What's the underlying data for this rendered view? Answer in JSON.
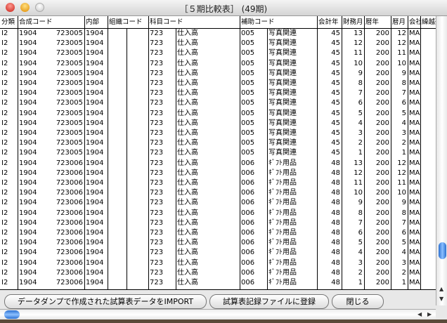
{
  "window": {
    "title": "［５期比較表］ (49期)"
  },
  "headers": [
    "分類",
    "合成コード",
    "内部",
    "組織コード",
    "科目コード",
    "補助コード",
    "会計年",
    "財務月",
    "暦年",
    "暦月",
    "会社",
    "繰越残"
  ],
  "rows": [
    [
      "I2",
      "1904",
      "723005",
      "1904",
      "",
      "",
      "723",
      "仕入高",
      "005",
      "写真関連",
      "45",
      "13",
      "200",
      "12",
      "MA"
    ],
    [
      "I2",
      "1904",
      "723005",
      "1904",
      "",
      "",
      "723",
      "仕入高",
      "005",
      "写真関連",
      "45",
      "12",
      "200",
      "12",
      "MA"
    ],
    [
      "I2",
      "1904",
      "723005",
      "1904",
      "",
      "",
      "723",
      "仕入高",
      "005",
      "写真関連",
      "45",
      "11",
      "200",
      "11",
      "MA"
    ],
    [
      "I2",
      "1904",
      "723005",
      "1904",
      "",
      "",
      "723",
      "仕入高",
      "005",
      "写真関連",
      "45",
      "10",
      "200",
      "10",
      "MA"
    ],
    [
      "I2",
      "1904",
      "723005",
      "1904",
      "",
      "",
      "723",
      "仕入高",
      "005",
      "写真関連",
      "45",
      "9",
      "200",
      "9",
      "MA"
    ],
    [
      "I2",
      "1904",
      "723005",
      "1904",
      "",
      "",
      "723",
      "仕入高",
      "005",
      "写真関連",
      "45",
      "8",
      "200",
      "8",
      "MA"
    ],
    [
      "I2",
      "1904",
      "723005",
      "1904",
      "",
      "",
      "723",
      "仕入高",
      "005",
      "写真関連",
      "45",
      "7",
      "200",
      "7",
      "MA"
    ],
    [
      "I2",
      "1904",
      "723005",
      "1904",
      "",
      "",
      "723",
      "仕入高",
      "005",
      "写真関連",
      "45",
      "6",
      "200",
      "6",
      "MA"
    ],
    [
      "I2",
      "1904",
      "723005",
      "1904",
      "",
      "",
      "723",
      "仕入高",
      "005",
      "写真関連",
      "45",
      "5",
      "200",
      "5",
      "MA"
    ],
    [
      "I2",
      "1904",
      "723005",
      "1904",
      "",
      "",
      "723",
      "仕入高",
      "005",
      "写真関連",
      "45",
      "4",
      "200",
      "4",
      "MA"
    ],
    [
      "I2",
      "1904",
      "723005",
      "1904",
      "",
      "",
      "723",
      "仕入高",
      "005",
      "写真関連",
      "45",
      "3",
      "200",
      "3",
      "MA"
    ],
    [
      "I2",
      "1904",
      "723005",
      "1904",
      "",
      "",
      "723",
      "仕入高",
      "005",
      "写真関連",
      "45",
      "2",
      "200",
      "2",
      "MA"
    ],
    [
      "I2",
      "1904",
      "723005",
      "1904",
      "",
      "",
      "723",
      "仕入高",
      "005",
      "写真関連",
      "45",
      "1",
      "200",
      "1",
      "MA"
    ],
    [
      "I2",
      "1904",
      "723006",
      "1904",
      "",
      "",
      "723",
      "仕入高",
      "006",
      "ｷﾞﾌﾄ用品",
      "48",
      "13",
      "200",
      "12",
      "MA"
    ],
    [
      "I2",
      "1904",
      "723006",
      "1904",
      "",
      "",
      "723",
      "仕入高",
      "006",
      "ｷﾞﾌﾄ用品",
      "48",
      "12",
      "200",
      "12",
      "MA"
    ],
    [
      "I2",
      "1904",
      "723006",
      "1904",
      "",
      "",
      "723",
      "仕入高",
      "006",
      "ｷﾞﾌﾄ用品",
      "48",
      "11",
      "200",
      "11",
      "MA"
    ],
    [
      "I2",
      "1904",
      "723006",
      "1904",
      "",
      "",
      "723",
      "仕入高",
      "006",
      "ｷﾞﾌﾄ用品",
      "48",
      "10",
      "200",
      "10",
      "MA"
    ],
    [
      "I2",
      "1904",
      "723006",
      "1904",
      "",
      "",
      "723",
      "仕入高",
      "006",
      "ｷﾞﾌﾄ用品",
      "48",
      "9",
      "200",
      "9",
      "MA"
    ],
    [
      "I2",
      "1904",
      "723006",
      "1904",
      "",
      "",
      "723",
      "仕入高",
      "006",
      "ｷﾞﾌﾄ用品",
      "48",
      "8",
      "200",
      "8",
      "MA"
    ],
    [
      "I2",
      "1904",
      "723006",
      "1904",
      "",
      "",
      "723",
      "仕入高",
      "006",
      "ｷﾞﾌﾄ用品",
      "48",
      "7",
      "200",
      "7",
      "MA"
    ],
    [
      "I2",
      "1904",
      "723006",
      "1904",
      "",
      "",
      "723",
      "仕入高",
      "006",
      "ｷﾞﾌﾄ用品",
      "48",
      "6",
      "200",
      "6",
      "MA"
    ],
    [
      "I2",
      "1904",
      "723006",
      "1904",
      "",
      "",
      "723",
      "仕入高",
      "006",
      "ｷﾞﾌﾄ用品",
      "48",
      "5",
      "200",
      "5",
      "MA"
    ],
    [
      "I2",
      "1904",
      "723006",
      "1904",
      "",
      "",
      "723",
      "仕入高",
      "006",
      "ｷﾞﾌﾄ用品",
      "48",
      "4",
      "200",
      "4",
      "MA"
    ],
    [
      "I2",
      "1904",
      "723006",
      "1904",
      "",
      "",
      "723",
      "仕入高",
      "006",
      "ｷﾞﾌﾄ用品",
      "48",
      "3",
      "200",
      "3",
      "MA"
    ],
    [
      "I2",
      "1904",
      "723006",
      "1904",
      "",
      "",
      "723",
      "仕入高",
      "006",
      "ｷﾞﾌﾄ用品",
      "48",
      "2",
      "200",
      "2",
      "MA"
    ],
    [
      "I2",
      "1904",
      "723006",
      "1904",
      "",
      "",
      "723",
      "仕入高",
      "006",
      "ｷﾞﾌﾄ用品",
      "48",
      "1",
      "200",
      "1",
      "MA"
    ]
  ],
  "buttons": {
    "import": "データダンプで作成された試算表データをIMPORT",
    "register": "試算表記録ファイルに登録",
    "close": "閉じる"
  },
  "colors": {
    "close": "#d8342c",
    "minimize": "#f0a020",
    "zoom": "#d8d8d8",
    "accent": "#3a80e0"
  }
}
